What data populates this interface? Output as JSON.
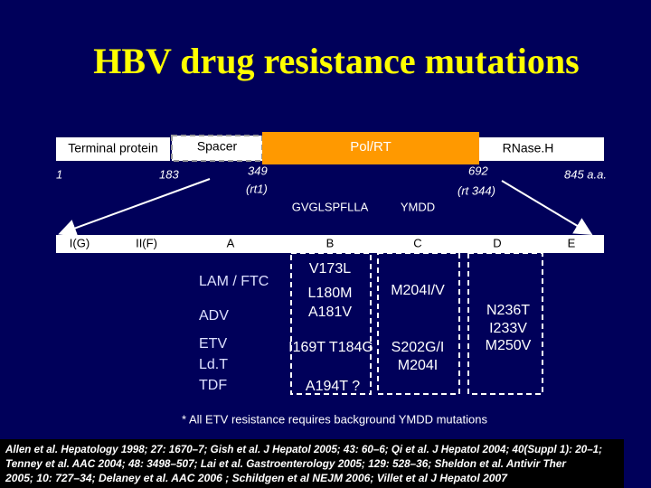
{
  "title": "HBV drug resistance mutations",
  "domains": [
    "Terminal protein",
    "Spacer",
    "Pol/RT",
    "RNase.H"
  ],
  "positions": [
    "1",
    "183",
    "349",
    "(rt1)",
    "692",
    "(rt 344)",
    "845 a.a."
  ],
  "motifs": [
    "GVGLSPFLLA",
    "YMDD"
  ],
  "subdomains": [
    "I(G)",
    "II(F)",
    "A",
    "B",
    "C",
    "D",
    "E"
  ],
  "drugs": [
    "LAM / FTC",
    "ADV",
    "ETV",
    "Ld.T",
    "TDF"
  ],
  "mutations": {
    "B": [
      "V173L",
      "L180M",
      "A181V",
      "I169T T184G",
      "A194T ?"
    ],
    "C": [
      "M204I/V",
      "S202G/I",
      "M204I"
    ],
    "D": [
      "N236T",
      "I233V",
      "M250V"
    ]
  },
  "footnote": "* All ETV resistance requires background YMDD mutations",
  "references": [
    "Allen et al. Hepatology 1998; 27: 1670–7; Gish et al. J Hepatol 2005; 43: 60–6; Qi et al. J Hepatol 2004; 40(Suppl 1): 20–1;",
    "Tenney et al. AAC 2004; 48: 3498–507; Lai et al. Gastroenterology 2005; 129: 528–36; Sheldon et al. Antivir Ther",
    "2005; 10: 727–34; Delaney et al. AAC 2006 ; Schildgen et al NEJM 2006; Villet et al J Hepatol 2007"
  ]
}
